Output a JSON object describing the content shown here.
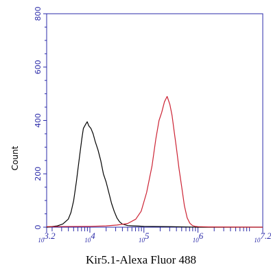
{
  "chart_data": {
    "type": "line",
    "title": "",
    "xlabel": "Kir5.1-Alexa Fluor 488",
    "ylabel": "Count",
    "x_scale": "log",
    "xlim": [
      3.2,
      7.2
    ],
    "ylim": [
      0,
      800
    ],
    "y_ticks": [
      "0",
      "200",
      "400",
      "600",
      "800"
    ],
    "x_ticks": [
      {
        "base": "10",
        "exp": "3.2",
        "pos": 3.2
      },
      {
        "base": "10",
        "exp": "4",
        "pos": 4
      },
      {
        "base": "10",
        "exp": "5",
        "pos": 5
      },
      {
        "base": "10",
        "exp": "6",
        "pos": 6
      },
      {
        "base": "10",
        "exp": "7.2",
        "pos": 7.2
      }
    ],
    "grid": false,
    "legend": "none",
    "series": [
      {
        "color": "#000000",
        "x": [
          3.2,
          3.4,
          3.5,
          3.6,
          3.65,
          3.7,
          3.75,
          3.8,
          3.85,
          3.88,
          3.92,
          3.95,
          3.98,
          4.02,
          4.06,
          4.1,
          4.15,
          4.2,
          4.25,
          4.3,
          4.35,
          4.4,
          4.45,
          4.5,
          4.55,
          4.6,
          4.7,
          4.8,
          4.9,
          5.0,
          5.5,
          6.0,
          7.2
        ],
        "y": [
          0,
          5,
          12,
          30,
          55,
          100,
          170,
          250,
          330,
          370,
          385,
          395,
          380,
          370,
          350,
          320,
          290,
          250,
          200,
          170,
          130,
          90,
          60,
          35,
          20,
          12,
          6,
          5,
          4,
          3,
          2,
          0,
          0
        ]
      },
      {
        "color": "#cc2233",
        "x": [
          3.2,
          4.0,
          4.3,
          4.5,
          4.7,
          4.85,
          4.95,
          5.05,
          5.15,
          5.22,
          5.28,
          5.33,
          5.38,
          5.43,
          5.48,
          5.52,
          5.56,
          5.6,
          5.65,
          5.7,
          5.75,
          5.8,
          5.85,
          5.9,
          5.95,
          6.0,
          6.2,
          7.2
        ],
        "y": [
          2,
          3,
          5,
          8,
          14,
          30,
          60,
          130,
          230,
          330,
          400,
          430,
          470,
          490,
          460,
          420,
          360,
          300,
          220,
          150,
          80,
          35,
          15,
          6,
          3,
          2,
          1,
          0
        ]
      }
    ]
  },
  "colors": {
    "axis": "#2a2aa8",
    "background": "#ffffff"
  }
}
